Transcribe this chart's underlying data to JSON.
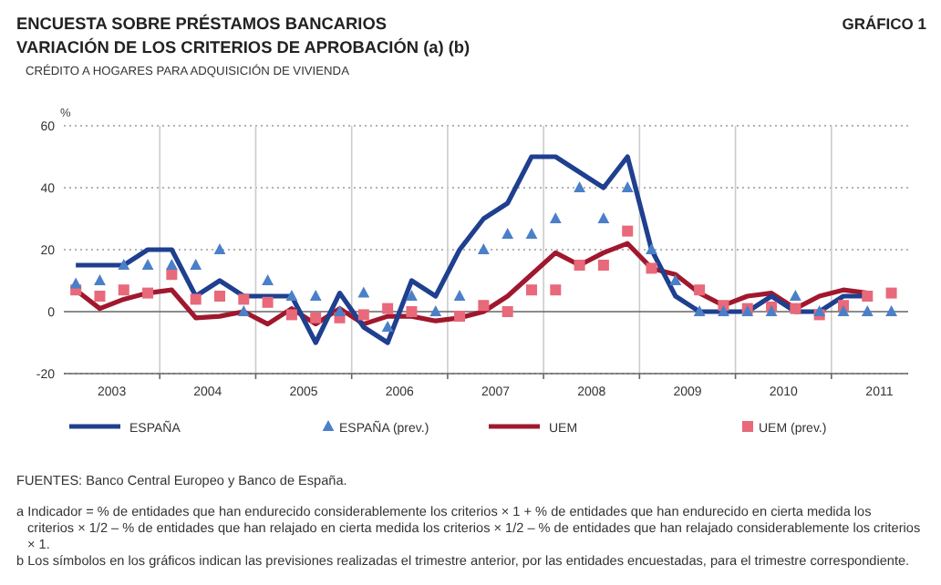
{
  "chart_data": {
    "type": "line",
    "title": "ENCUESTA SOBRE PRÉSTAMOS BANCARIOS",
    "subtitle": "VARIACIÓN DE LOS CRITERIOS DE APROBACIÓN (a) (b)",
    "ylabel": "%",
    "annotations": [
      "GRÁFICO 1",
      "CRÉDITO A HOGARES PARA ADQUISICIÓN DE VIVIENDA",
      "FUENTES: Banco Central Europeo y Banco de España.",
      "a  Indicador = % de entidades que han endurecido considerablemente los criterios × 1 + % de entidades que han endurecido en cierta medida los criterios × 1/2 – % de entidades que han relajado en cierta medida los criterios × 1/2 – % de entidades que han relajado considerablemente los criterios × 1.",
      "b  Los símbolos en los gráficos indican las previsiones realizadas el trimestre anterior, por las entidades encuestadas, para el trimestre correspondiente."
    ],
    "x": [
      2003.125,
      2003.375,
      2003.625,
      2003.875,
      2004.125,
      2004.375,
      2004.625,
      2004.875,
      2005.125,
      2005.375,
      2005.625,
      2005.875,
      2006.125,
      2006.375,
      2006.625,
      2006.875,
      2007.125,
      2007.375,
      2007.625,
      2007.875,
      2008.125,
      2008.375,
      2008.625,
      2008.875,
      2009.125,
      2009.375,
      2009.625,
      2009.875,
      2010.125,
      2010.375,
      2010.625,
      2010.875,
      2011.125,
      2011.375,
      2011.625
    ],
    "xlim": [
      2003,
      2011.8
    ],
    "xticks": [
      {
        "value": 2003.5,
        "label": "2003"
      },
      {
        "value": 2004,
        "label": null
      },
      {
        "value": 2004.5,
        "label": "2004"
      },
      {
        "value": 2005,
        "label": null
      },
      {
        "value": 2005.5,
        "label": "2005"
      },
      {
        "value": 2006,
        "label": null
      },
      {
        "value": 2006.5,
        "label": "2006"
      },
      {
        "value": 2007,
        "label": null
      },
      {
        "value": 2007.5,
        "label": "2007"
      },
      {
        "value": 2008,
        "label": null
      },
      {
        "value": 2008.5,
        "label": "2008"
      },
      {
        "value": 2009,
        "label": null
      },
      {
        "value": 2009.5,
        "label": "2009"
      },
      {
        "value": 2010,
        "label": null
      },
      {
        "value": 2010.5,
        "label": "2010"
      },
      {
        "value": 2011,
        "label": null
      },
      {
        "value": 2011.5,
        "label": "2011"
      }
    ],
    "ylim": [
      -20,
      60
    ],
    "yticks": [
      -20,
      0,
      20,
      40,
      60
    ],
    "grid": true,
    "legend": "bottom",
    "series": [
      {
        "name": "ESPAÑA",
        "type": "line",
        "marker": "none",
        "color": "#1f3f8f",
        "values": [
          15,
          15,
          15,
          20,
          20,
          5,
          10,
          5,
          5,
          5,
          -10,
          6,
          -5,
          -10,
          10,
          5,
          20,
          30,
          35,
          50,
          50,
          45,
          40,
          50,
          20,
          5,
          0,
          0,
          0,
          5,
          0,
          0,
          5,
          5,
          null
        ]
      },
      {
        "name": "ESPAÑA (prev.)",
        "type": "scatter",
        "marker": "triangle",
        "color": "#4a80c8",
        "values": [
          9,
          10,
          15,
          15,
          15,
          15,
          20,
          0,
          10,
          5,
          5,
          0,
          6,
          -5,
          5,
          0,
          5,
          20,
          25,
          25,
          30,
          40,
          30,
          40,
          20,
          10,
          0,
          0,
          0,
          0,
          5,
          0,
          0,
          0,
          0
        ]
      },
      {
        "name": "UEM",
        "type": "line",
        "marker": "none",
        "color": "#a0182e",
        "values": [
          7,
          1,
          4,
          6,
          7,
          -2,
          -1.5,
          0,
          -4,
          1,
          -4,
          1,
          -4,
          -1.5,
          -1.5,
          -3,
          -2,
          0,
          5,
          12,
          19,
          15,
          19,
          22,
          14,
          12,
          6,
          2,
          5,
          6,
          1,
          5,
          7,
          6,
          null
        ]
      },
      {
        "name": "UEM (prev.)",
        "type": "scatter",
        "marker": "square",
        "color": "#e8697a",
        "values": [
          7,
          5,
          7,
          6,
          12,
          4,
          5,
          4,
          3,
          -1,
          -2,
          -2,
          -1,
          1,
          0,
          null,
          -1.5,
          2,
          0,
          7,
          7,
          15,
          15,
          26,
          14,
          null,
          7,
          2,
          1,
          1.5,
          1,
          -1,
          2,
          5,
          6
        ]
      }
    ]
  }
}
